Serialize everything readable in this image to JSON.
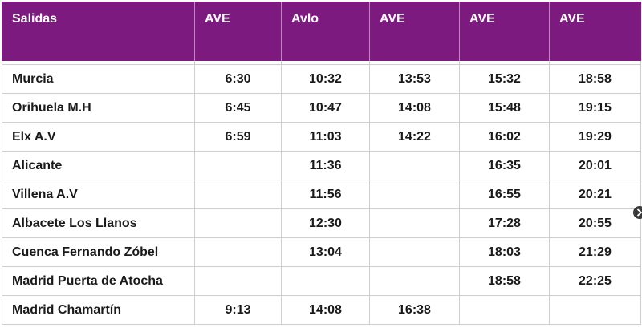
{
  "header": {
    "label": "Salidas",
    "trains": [
      "AVE",
      "Avlo",
      "AVE",
      "AVE",
      "AVE"
    ]
  },
  "rows": [
    {
      "station": "Murcia",
      "times": [
        "6:30",
        "10:32",
        "13:53",
        "15:32",
        "18:58"
      ]
    },
    {
      "station": "Orihuela M.H",
      "times": [
        "6:45",
        "10:47",
        "14:08",
        "15:48",
        "19:15"
      ]
    },
    {
      "station": "Elx A.V",
      "times": [
        "6:59",
        "11:03",
        "14:22",
        "16:02",
        "19:29"
      ]
    },
    {
      "station": "Alicante",
      "times": [
        "",
        "11:36",
        "",
        "16:35",
        "20:01"
      ]
    },
    {
      "station": "Villena A.V",
      "times": [
        "",
        "11:56",
        "",
        "16:55",
        "20:21"
      ]
    },
    {
      "station": "Albacete Los Llanos",
      "times": [
        "",
        "12:30",
        "",
        "17:28",
        "20:55"
      ]
    },
    {
      "station": "Cuenca Fernando Zóbel",
      "times": [
        "",
        "13:04",
        "",
        "18:03",
        "21:29"
      ]
    },
    {
      "station": "Madrid Puerta de Atocha",
      "times": [
        "",
        "",
        "",
        "18:58",
        "22:25"
      ]
    },
    {
      "station": "Madrid Chamartín",
      "times": [
        "9:13",
        "14:08",
        "16:38",
        "",
        ""
      ]
    }
  ],
  "colors": {
    "header_bg": "#7d1a7f",
    "header_text": "#ffffff",
    "grid": "#cfcfcf"
  },
  "icons": {
    "scroll_button": "chevron-right-icon"
  }
}
